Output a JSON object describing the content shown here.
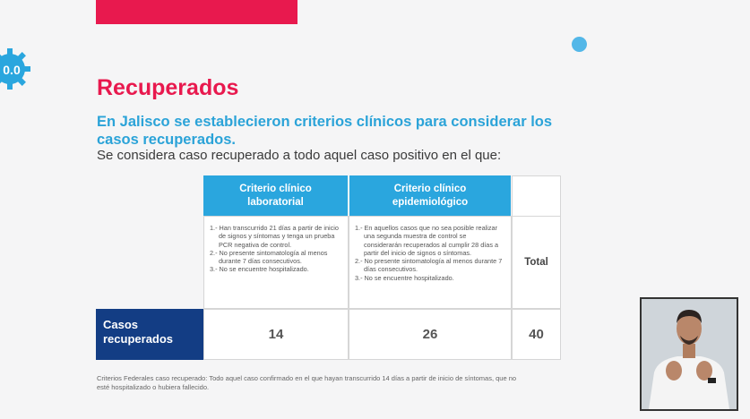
{
  "slide": {
    "title": "Recuperados",
    "subtitle": "En Jalisco se establecieron criterios clínicos para considerar los casos recuperados.",
    "lead": "Se considera caso recuperado a todo aquel caso positivo en el que:",
    "colors": {
      "accent": "#e8194e",
      "header_blue": "#2aa6de",
      "row_navy": "#133d84",
      "dot": "#53b7e8"
    }
  },
  "table": {
    "headers": {
      "laboratorial": "Criterio clínico laboratorial",
      "epidemiologico": "Criterio clínico epidemiológico",
      "total": "Total"
    },
    "criteria_lab": [
      "1.- Han transcurrido 21 días a partir de inicio de signos y síntomas y tenga un prueba PCR negativa de control.",
      "2.- No presente sintomatología al menos durante 7 días consecutivos.",
      "3.- No se encuentre hospitalizado."
    ],
    "criteria_epi": [
      "1.- En aquellos casos que no sea posible realizar una segunda muestra de control se considerarán recuperados al cumplir 28 días a partir del inicio de signos o síntomas.",
      "2.- No presente sintomatología al menos durante 7 días consecutivos.",
      "3.- No se encuentre hospitalizado."
    ],
    "row_label": "Casos recuperados",
    "values": {
      "laboratorial": "14",
      "epidemiologico": "26",
      "total": "40"
    }
  },
  "footnote": "Criterios Federales caso recuperado: Todo aquel caso confirmado en el que hayan transcurrido 14 días a partir de inicio de síntomas, que no esté hospitalizado o hubiera fallecido."
}
